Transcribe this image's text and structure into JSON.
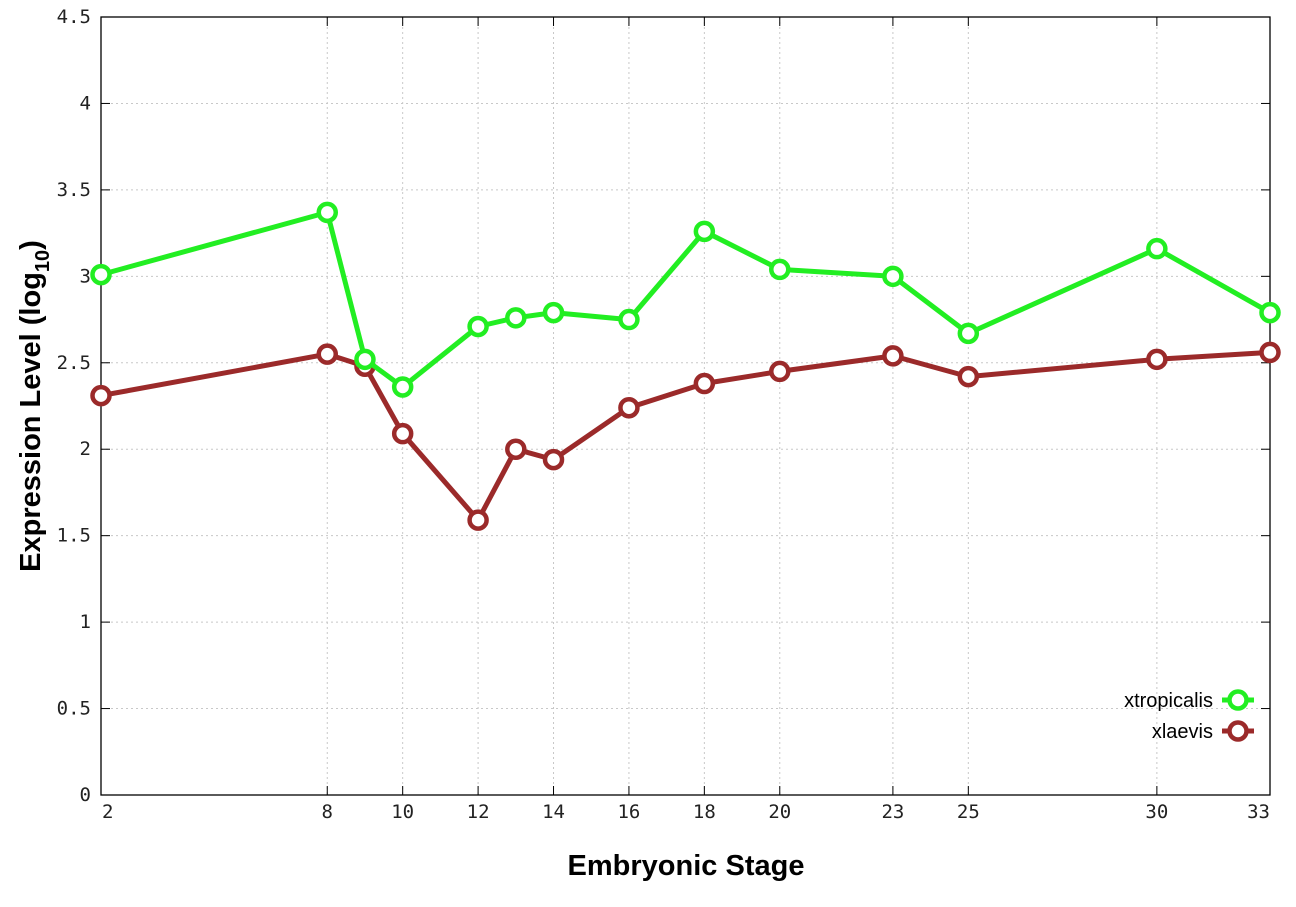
{
  "chart_data": {
    "type": "line",
    "xlabel": "Embryonic Stage",
    "ylabel": "Expression Level (log",
    "ylabel_subscript": "10",
    "ylabel_close": ")",
    "x": [
      2,
      8,
      9,
      10,
      12,
      13,
      14,
      16,
      18,
      20,
      23,
      25,
      30,
      33
    ],
    "x_ticks": [
      "2",
      "8",
      "10",
      "12",
      "14",
      "16",
      "18",
      "20",
      "23",
      "25",
      "30",
      "33"
    ],
    "x_tick_values": [
      2,
      8,
      10,
      12,
      14,
      16,
      18,
      20,
      23,
      25,
      30,
      33
    ],
    "y_ticks": [
      "0",
      "0.5",
      "1",
      "1.5",
      "2",
      "2.5",
      "3",
      "3.5",
      "4",
      "4.5"
    ],
    "y_tick_values": [
      0,
      0.5,
      1,
      1.5,
      2,
      2.5,
      3,
      3.5,
      4,
      4.5
    ],
    "xlim": [
      2,
      33
    ],
    "ylim": [
      0,
      4.5
    ],
    "grid": true,
    "legend_position": "bottom-right",
    "series": [
      {
        "name": "xtropicalis",
        "color": "#22ee22",
        "marker": "open-circle",
        "values": [
          3.01,
          3.37,
          2.52,
          2.36,
          2.71,
          2.76,
          2.79,
          2.75,
          3.26,
          3.04,
          3.0,
          2.67,
          3.16,
          2.79
        ]
      },
      {
        "name": "xlaevis",
        "color": "#9b2a2a",
        "marker": "open-circle",
        "values": [
          2.31,
          2.55,
          2.48,
          2.09,
          1.59,
          2.0,
          1.94,
          2.24,
          2.38,
          2.45,
          2.54,
          2.42,
          2.52,
          2.56
        ]
      }
    ]
  }
}
